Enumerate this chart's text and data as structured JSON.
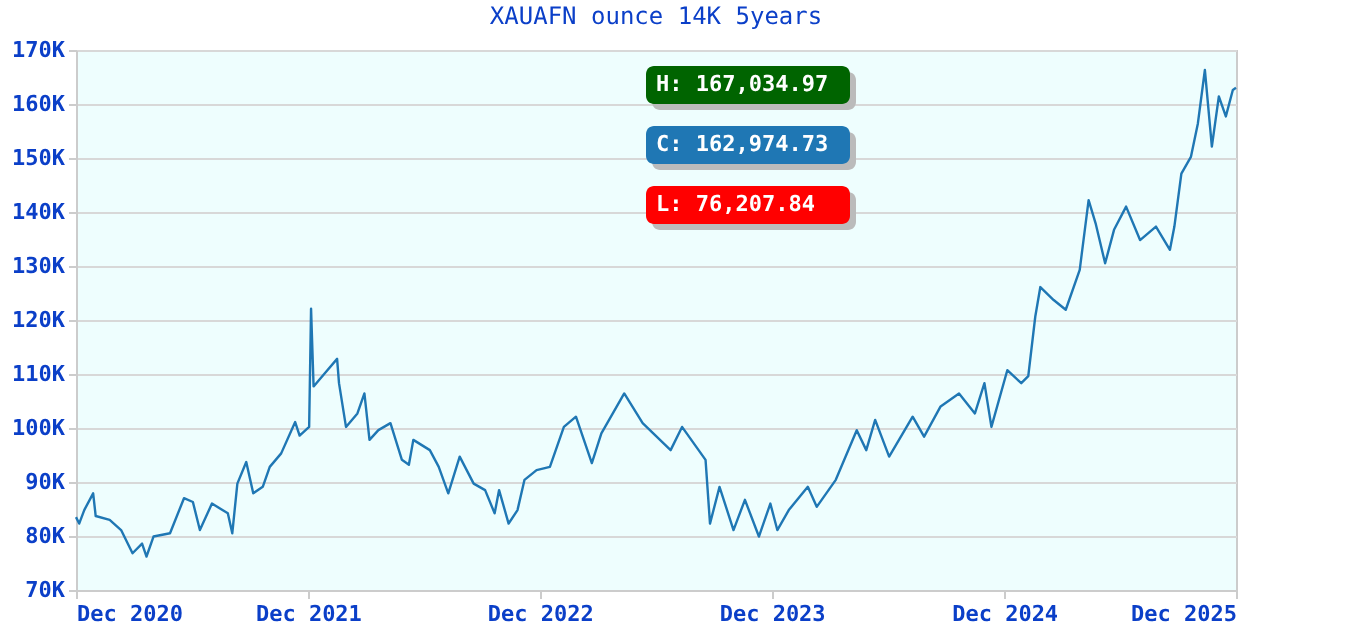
{
  "chart_data": {
    "type": "line",
    "title": "XAUAFN ounce 14K 5years",
    "annotations": [
      "H: 167,034.97",
      "C: 162,974.73",
      "L: 76,207.84"
    ],
    "x": [
      "2020-12-01",
      "2020-12-06",
      "2020-12-14",
      "2020-12-28",
      "2021-01-01",
      "2021-01-23",
      "2021-02-10",
      "2021-02-28",
      "2021-03-15",
      "2021-03-22",
      "2021-04-02",
      "2021-04-28",
      "2021-05-20",
      "2021-06-03",
      "2021-06-14",
      "2021-07-03",
      "2021-07-28",
      "2021-08-04",
      "2021-08-12",
      "2021-08-26",
      "2021-09-06",
      "2021-09-21",
      "2021-10-02",
      "2021-10-20",
      "2021-11-11",
      "2021-11-18",
      "2021-12-03",
      "2021-12-06",
      "2021-12-10",
      "2021-12-28",
      "2022-01-16",
      "2022-01-19",
      "2022-01-30",
      "2022-02-17",
      "2022-02-28",
      "2022-03-08",
      "2022-03-22",
      "2022-04-10",
      "2022-04-28",
      "2022-05-09",
      "2022-05-16",
      "2022-06-11",
      "2022-06-25",
      "2022-07-10",
      "2022-07-28",
      "2022-08-19",
      "2022-09-06",
      "2022-09-21",
      "2022-09-28",
      "2022-10-13",
      "2022-10-27",
      "2022-11-07",
      "2022-11-26",
      "2022-12-17",
      "2023-01-08",
      "2023-01-27",
      "2023-02-21",
      "2023-03-08",
      "2023-04-13",
      "2023-05-12",
      "2023-06-25",
      "2023-07-13",
      "2023-08-19",
      "2023-08-26",
      "2023-09-10",
      "2023-10-02",
      "2023-10-20",
      "2023-11-11",
      "2023-11-29",
      "2023-12-10",
      "2023-12-28",
      "2024-01-27",
      "2024-02-10",
      "2024-03-11",
      "2024-04-13",
      "2024-04-28",
      "2024-05-12",
      "2024-06-03",
      "2024-07-10",
      "2024-07-28",
      "2024-08-23",
      "2024-09-21",
      "2024-10-16",
      "2024-10-31",
      "2024-11-11",
      "2024-12-06",
      "2024-12-28",
      "2025-01-08",
      "2025-01-19",
      "2025-01-27",
      "2025-02-17",
      "2025-03-08",
      "2025-03-30",
      "2025-04-13",
      "2025-04-24",
      "2025-05-09",
      "2025-05-23",
      "2025-06-11",
      "2025-07-03",
      "2025-07-28",
      "2025-08-19",
      "2025-08-26",
      "2025-09-06",
      "2025-09-21",
      "2025-10-02",
      "2025-10-13",
      "2025-10-24",
      "2025-11-04",
      "2025-11-15",
      "2025-11-26",
      "2025-12-01"
    ],
    "series": [
      {
        "color": "#1f77b4",
        "values": [
          83.5,
          82.3,
          84.8,
          87.9,
          83.7,
          83,
          81.1,
          76.8,
          78.6,
          76.2,
          79.9,
          80.5,
          87,
          86.3,
          81.1,
          86,
          84.2,
          80.5,
          89.7,
          93.7,
          87.9,
          89.1,
          92.8,
          95.3,
          101.1,
          98.6,
          100.2,
          122.1,
          107.7,
          110.2,
          112.8,
          108.3,
          100.2,
          102.7,
          106.4,
          97.8,
          99.6,
          100.9,
          94.1,
          93.2,
          97.8,
          95.9,
          92.8,
          87.9,
          94.7,
          89.7,
          88.5,
          84.2,
          88.5,
          82.3,
          84.8,
          90.4,
          92.2,
          92.8,
          100.2,
          102.1,
          93.5,
          99,
          106.4,
          100.9,
          95.9,
          100.2,
          94.1,
          82.3,
          89.1,
          81.1,
          86.7,
          79.9,
          86,
          81.1,
          84.8,
          89.1,
          85.4,
          90.4,
          99.6,
          95.9,
          101.5,
          94.7,
          102.1,
          98.4,
          104,
          106.4,
          102.7,
          108.3,
          100.2,
          110.7,
          108.3,
          109.6,
          120.6,
          126.1,
          123.7,
          121.9,
          129.3,
          142.2,
          137.9,
          130.5,
          136.7,
          141,
          134.8,
          137.3,
          133,
          137.3,
          147.1,
          150.2,
          156.4,
          166.3,
          152.1,
          161.4,
          157.7,
          162.6,
          163
        ]
      }
    ],
    "xlim": [
      "2020-12-01",
      "2025-12-01"
    ],
    "xticks": [
      {
        "value": "2020-12-01",
        "label": "Dec 2020"
      },
      {
        "value": "2021-12-01",
        "label": "Dec 2021"
      },
      {
        "value": "2022-12-01",
        "label": "Dec 2022"
      },
      {
        "value": "2023-12-01",
        "label": "Dec 2023"
      },
      {
        "value": "2024-12-01",
        "label": "Dec 2024"
      },
      {
        "value": "2025-12-01",
        "label": "Dec 2025"
      }
    ],
    "ylim": [
      70,
      170
    ],
    "yticks": [
      {
        "value": 70,
        "label": "70K"
      },
      {
        "value": 80,
        "label": "80K"
      },
      {
        "value": 90,
        "label": "90K"
      },
      {
        "value": 100,
        "label": "100K"
      },
      {
        "value": 110,
        "label": "110K"
      },
      {
        "value": 120,
        "label": "120K"
      },
      {
        "value": 130,
        "label": "130K"
      },
      {
        "value": 140,
        "label": "140K"
      },
      {
        "value": 150,
        "label": "150K"
      },
      {
        "value": 160,
        "label": "160K"
      },
      {
        "value": 170,
        "label": "170K"
      }
    ],
    "grid": "y",
    "marker": "none",
    "line_style": "solid"
  }
}
